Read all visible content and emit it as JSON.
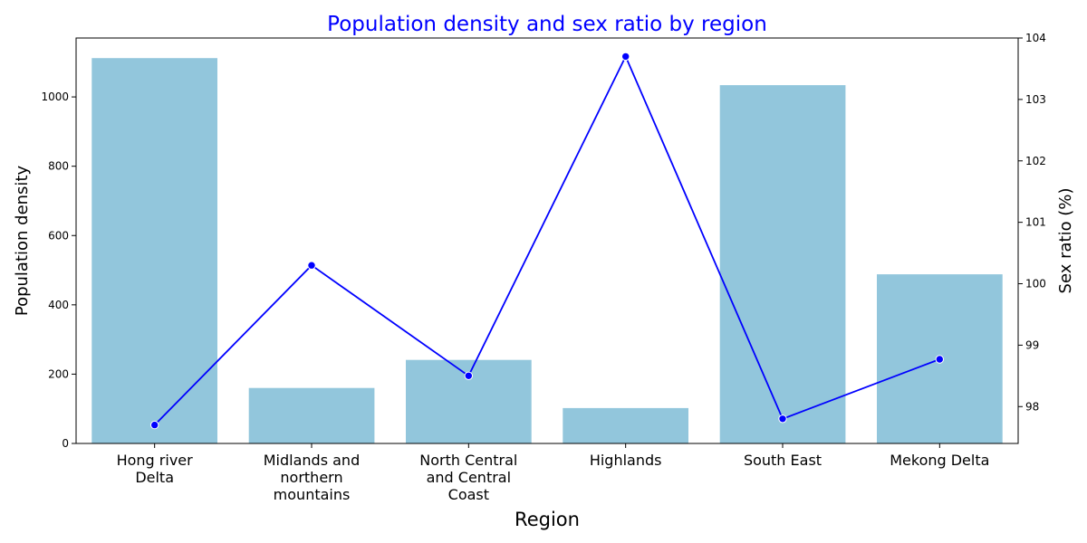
{
  "chart_data": {
    "type": "bar",
    "title": "Population density and sex ratio by region",
    "title_color": "#0000ff",
    "xlabel": "Region",
    "ylabel": "Population density",
    "y2label": "Sex ratio (%)",
    "y2label_color": "#ffa500",
    "categories": [
      [
        "Hong river",
        "Delta"
      ],
      [
        "Midlands and",
        "northern",
        "mountains"
      ],
      [
        "North Central",
        "and Central",
        "Coast"
      ],
      [
        "Highlands"
      ],
      [
        "South East"
      ],
      [
        "Mekong Delta"
      ]
    ],
    "series": [
      {
        "type": "bar",
        "axis": "left",
        "color": "#92c6dc",
        "values": [
          1112,
          160,
          241,
          102,
          1034,
          488
        ]
      },
      {
        "type": "line",
        "axis": "right",
        "color": "#0000ff",
        "marker": "circle",
        "values": [
          97.7,
          100.3,
          98.5,
          103.7,
          97.8,
          98.77
        ]
      }
    ],
    "ylim": [
      0,
      1170
    ],
    "yticks": [
      0,
      200,
      400,
      600,
      800,
      1000
    ],
    "y2lim": [
      97.4,
      104.0
    ],
    "y2ticks": [
      98,
      99,
      100,
      101,
      102,
      103,
      104
    ],
    "grid": false,
    "legend": "none"
  }
}
